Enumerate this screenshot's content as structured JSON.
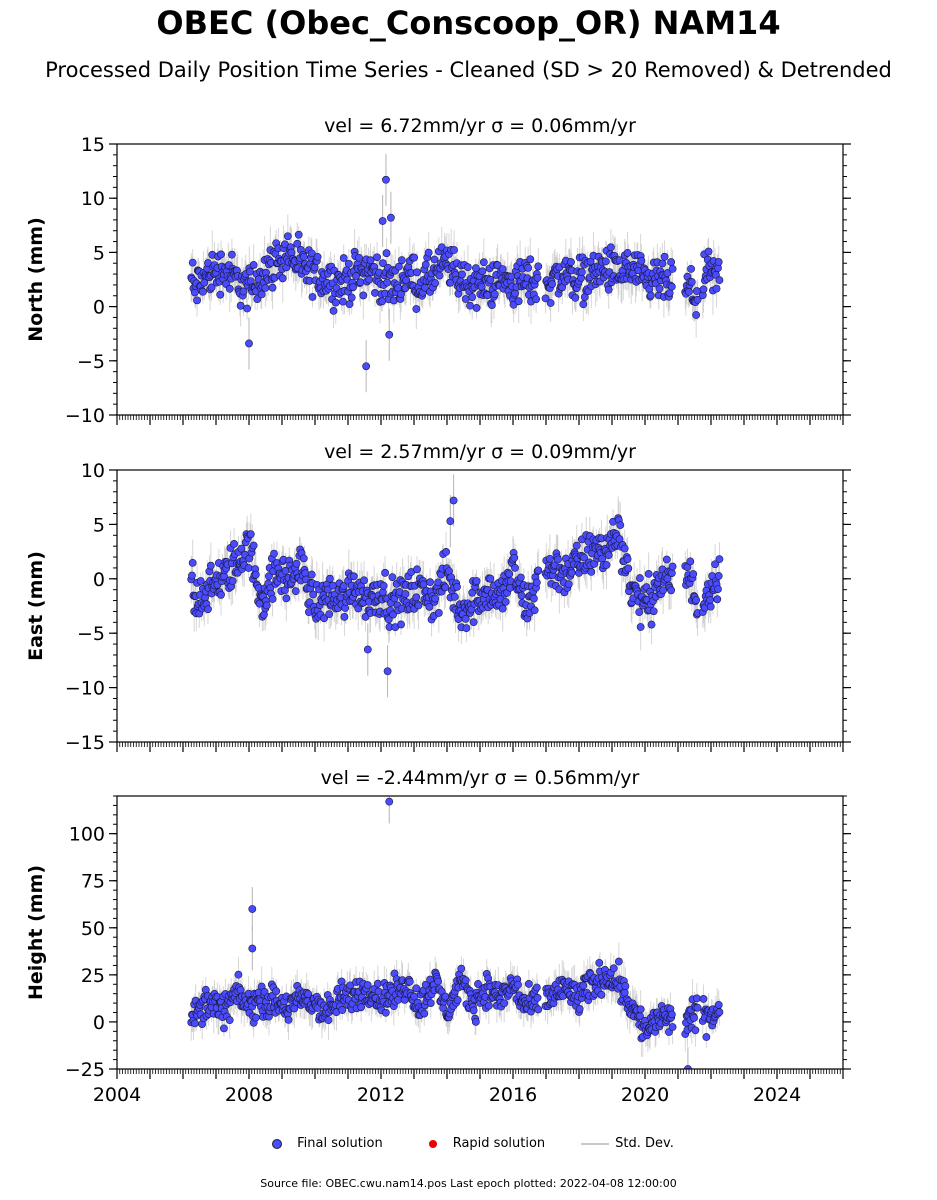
{
  "title": "OBEC (Obec_Conscoop_OR) NAM14",
  "subtitle": "Processed Daily Position Time Series - Cleaned (SD > 20 Removed) & Detrended",
  "chart_data": [
    {
      "type": "scatter",
      "title": "vel = 6.72mm/yr   σ = 0.06mm/yr",
      "ylabel": "North (mm)",
      "xlim": [
        2004,
        2026
      ],
      "ylim": [
        -10,
        15
      ],
      "yticks": [
        -10,
        -5,
        0,
        5,
        10,
        15
      ],
      "ytick_labels": [
        "−10",
        "−5",
        "0",
        "5",
        "10",
        "15"
      ],
      "series": [
        {
          "name": "Final solution",
          "x": [
            2006.3,
            2006.8,
            2007.2,
            2007.6,
            2008.0,
            2008.4,
            2008.8,
            2009.2,
            2009.6,
            2010.0,
            2010.4,
            2010.8,
            2011.2,
            2011.6,
            2012.0,
            2012.4,
            2012.8,
            2013.2,
            2013.6,
            2014.0,
            2014.4,
            2014.8,
            2015.2,
            2015.6,
            2016.0,
            2016.4,
            2016.8,
            2017.2,
            2017.6,
            2018.0,
            2018.4,
            2018.8,
            2019.2,
            2019.6,
            2020.0,
            2020.4,
            2021.3,
            2021.6,
            2021.9,
            2022.2,
            2011.55,
            2012.15,
            2012.05,
            2012.3,
            2012.25,
            2008.0
          ],
          "y": [
            1.5,
            3.0,
            3.5,
            2.5,
            1.5,
            3.0,
            4.0,
            5.0,
            3.5,
            3.0,
            2.5,
            2.0,
            3.0,
            3.5,
            2.5,
            2.0,
            3.0,
            2.0,
            3.0,
            4.0,
            2.5,
            2.0,
            2.0,
            2.5,
            2.0,
            2.5,
            2.0,
            2.5,
            3.0,
            2.5,
            3.0,
            3.5,
            3.0,
            3.5,
            2.0,
            2.5,
            1.5,
            1.0,
            3.0,
            2.5,
            -5.5,
            11.7,
            7.9,
            8.2,
            -2.6,
            -3.4
          ]
        }
      ]
    },
    {
      "type": "scatter",
      "title": "vel = 2.57mm/yr   σ = 0.09mm/yr",
      "ylabel": "East (mm)",
      "xlim": [
        2004,
        2026
      ],
      "ylim": [
        -15,
        10
      ],
      "yticks": [
        -15,
        -10,
        -5,
        0,
        5,
        10
      ],
      "ytick_labels": [
        "−15",
        "−10",
        "−5",
        "0",
        "5",
        "10"
      ],
      "series": [
        {
          "name": "Final solution",
          "x": [
            2006.3,
            2006.8,
            2007.2,
            2007.6,
            2008.0,
            2008.4,
            2008.8,
            2009.2,
            2009.6,
            2010.0,
            2010.4,
            2010.8,
            2011.2,
            2011.6,
            2012.0,
            2012.4,
            2012.8,
            2013.2,
            2013.6,
            2014.0,
            2014.4,
            2014.8,
            2015.2,
            2015.6,
            2016.0,
            2016.4,
            2016.8,
            2017.2,
            2017.6,
            2018.0,
            2018.4,
            2018.8,
            2019.2,
            2019.6,
            2020.0,
            2020.4,
            2021.3,
            2021.6,
            2021.9,
            2022.2,
            2011.6,
            2012.2,
            2014.2,
            2014.1
          ],
          "y": [
            -2.0,
            -1.0,
            0.0,
            1.5,
            3.0,
            -2.0,
            0.5,
            0.0,
            1.0,
            -2.5,
            -1.5,
            -2.0,
            -0.5,
            -2.0,
            -1.0,
            -2.5,
            -1.5,
            -1.0,
            -2.0,
            0.5,
            -3.0,
            -2.0,
            -1.0,
            -2.0,
            1.0,
            -3.0,
            0.5,
            1.0,
            0.5,
            1.5,
            2.5,
            2.5,
            4.5,
            -1.0,
            -2.5,
            -0.5,
            0.5,
            -2.5,
            -1.0,
            0.5,
            -6.5,
            -8.5,
            7.2,
            5.3
          ]
        }
      ]
    },
    {
      "type": "scatter",
      "title": "vel = -2.44mm/yr   σ = 0.56mm/yr",
      "ylabel": "Height (mm)",
      "xlim": [
        2004,
        2026
      ],
      "ylim": [
        -25,
        120
      ],
      "yticks": [
        -25,
        0,
        25,
        50,
        75,
        100
      ],
      "ytick_labels": [
        "−25",
        "0",
        "25",
        "50",
        "75",
        "100"
      ],
      "xticks": [
        2004,
        2008,
        2012,
        2016,
        2020,
        2024
      ],
      "series": [
        {
          "name": "Final solution",
          "x": [
            2006.3,
            2006.8,
            2007.2,
            2007.6,
            2008.0,
            2008.4,
            2008.8,
            2009.2,
            2009.6,
            2010.0,
            2010.4,
            2010.8,
            2011.2,
            2011.6,
            2012.0,
            2012.4,
            2012.8,
            2013.2,
            2013.6,
            2014.0,
            2014.4,
            2014.8,
            2015.2,
            2015.6,
            2016.0,
            2016.4,
            2016.8,
            2017.2,
            2017.6,
            2018.0,
            2018.4,
            2018.8,
            2019.2,
            2019.6,
            2020.0,
            2020.4,
            2021.3,
            2021.6,
            2021.9,
            2022.2,
            2012.25,
            2008.1,
            2008.1,
            2021.3
          ],
          "y": [
            2,
            12,
            5,
            15,
            8,
            12,
            10,
            8,
            12,
            10,
            5,
            12,
            14,
            18,
            12,
            15,
            20,
            8,
            22,
            6,
            20,
            10,
            18,
            12,
            20,
            8,
            10,
            14,
            18,
            12,
            20,
            25,
            22,
            8,
            -5,
            2,
            0,
            5,
            3,
            5,
            117,
            60,
            39,
            -25
          ]
        }
      ]
    }
  ],
  "legend": {
    "final_label": "Final solution",
    "rapid_label": "Rapid solution",
    "std_label": "Std. Dev."
  },
  "footer": "Source file: OBEC.cwu.nam14.pos  Last epoch plotted: 2022-04-08 12:00:00",
  "colors": {
    "final": "#4a4aff",
    "rapid": "#ee0000",
    "std": "#b4b4b4"
  }
}
